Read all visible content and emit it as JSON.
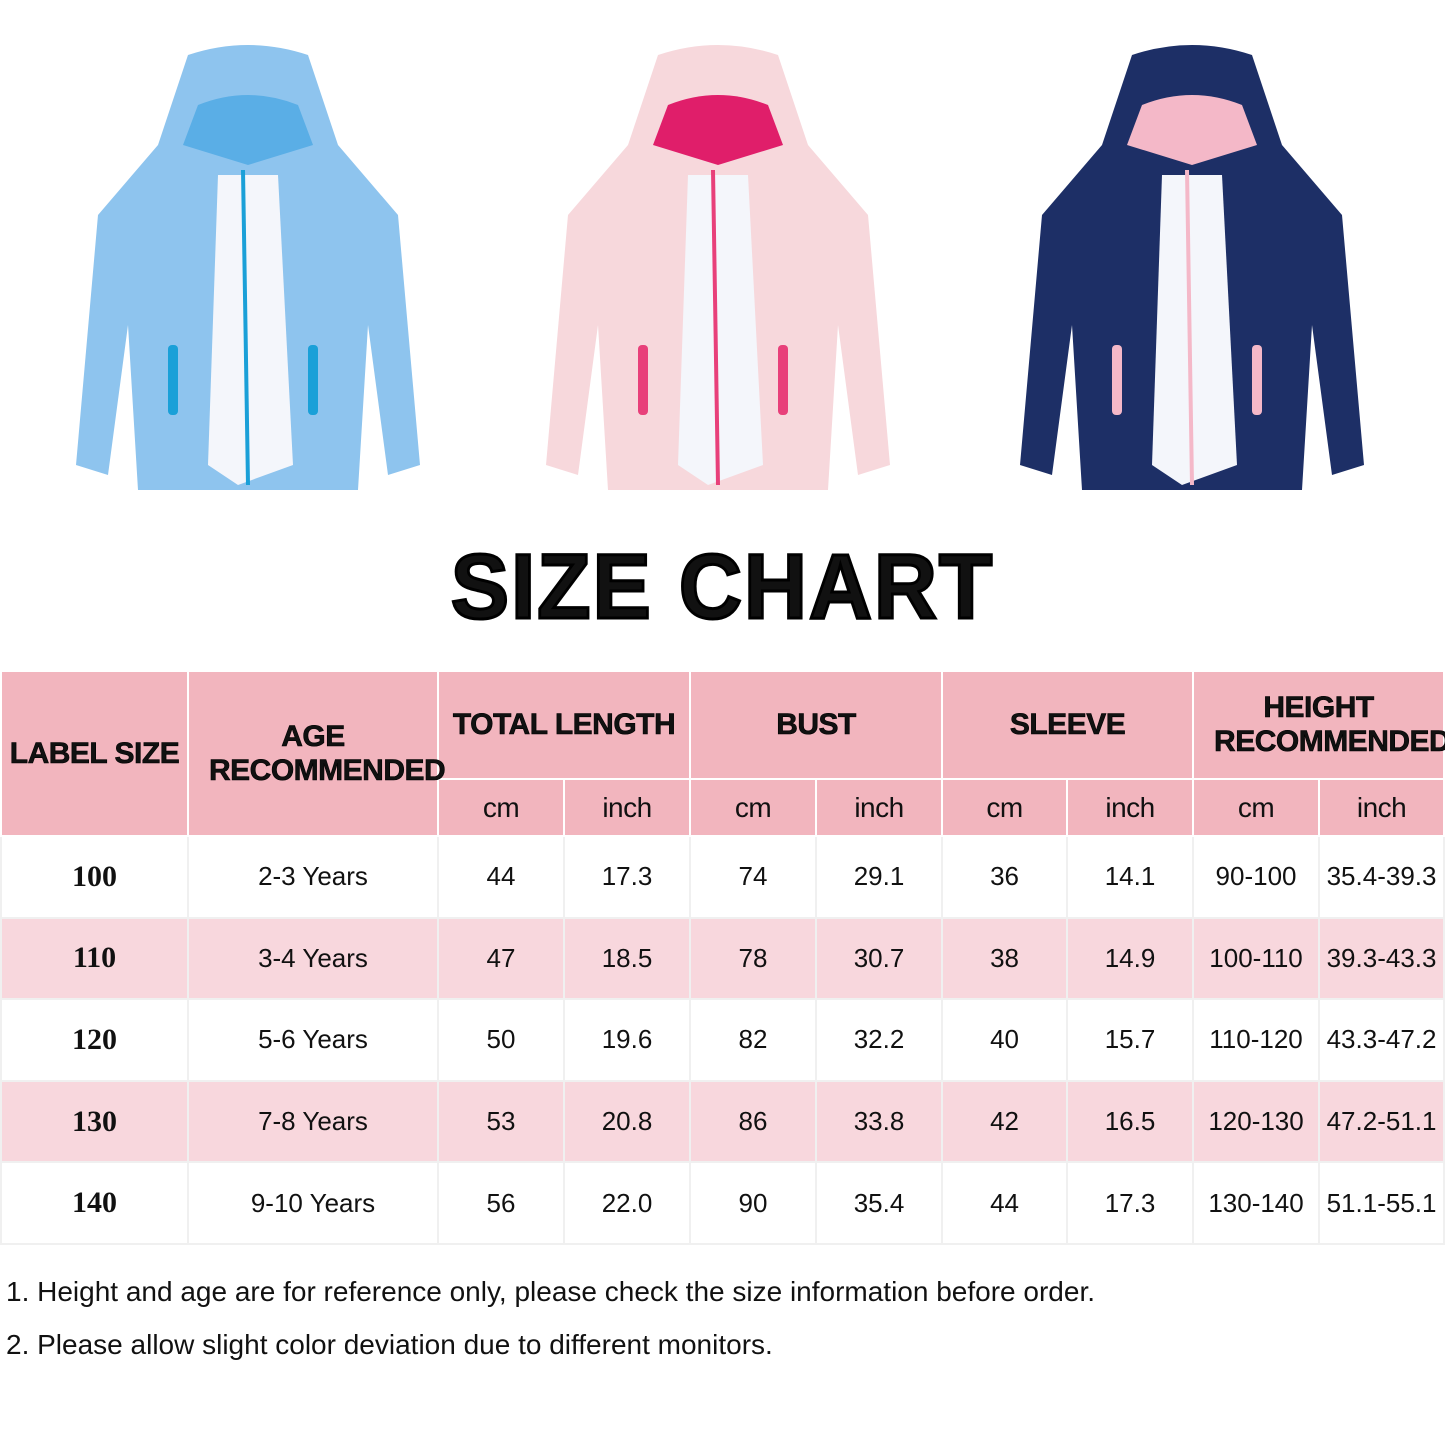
{
  "jackets": [
    {
      "name": "blue-unicorn-jacket",
      "color": "#8ec4ee",
      "trim": "#1aa0d8"
    },
    {
      "name": "pink-dinosaur-jacket",
      "color": "#f7d8dc",
      "trim": "#e8407a"
    },
    {
      "name": "navy-unicorn-jacket",
      "color": "#1d2f66",
      "trim": "#f4b8c8"
    }
  ],
  "title": "SIZE CHART",
  "colors": {
    "header": "#f2b5be",
    "alt_row": "#f8d7dd"
  },
  "table": {
    "headers": {
      "label_size": "LABEL SIZE",
      "age": "AGE RECOMMENDED",
      "total_length": "TOTAL LENGTH",
      "bust": "BUST",
      "sleeve": "SLEEVE",
      "height": "HEIGHT RECOMMENDED"
    },
    "units": {
      "cm": "cm",
      "inch": "inch"
    },
    "rows": [
      [
        "100",
        "2-3 Years",
        "44",
        "17.3",
        "74",
        "29.1",
        "36",
        "14.1",
        "90-100",
        "35.4-39.3"
      ],
      [
        "110",
        "3-4 Years",
        "47",
        "18.5",
        "78",
        "30.7",
        "38",
        "14.9",
        "100-110",
        "39.3-43.3"
      ],
      [
        "120",
        "5-6 Years",
        "50",
        "19.6",
        "82",
        "32.2",
        "40",
        "15.7",
        "110-120",
        "43.3-47.2"
      ],
      [
        "130",
        "7-8 Years",
        "53",
        "20.8",
        "86",
        "33.8",
        "42",
        "16.5",
        "120-130",
        "47.2-51.1"
      ],
      [
        "140",
        "9-10 Years",
        "56",
        "22.0",
        "90",
        "35.4",
        "44",
        "17.3",
        "130-140",
        "51.1-55.1"
      ]
    ]
  },
  "notes": [
    "1. Height and age are for reference only, please check the size information before order.",
    "2. Please allow slight color deviation due to different monitors."
  ]
}
